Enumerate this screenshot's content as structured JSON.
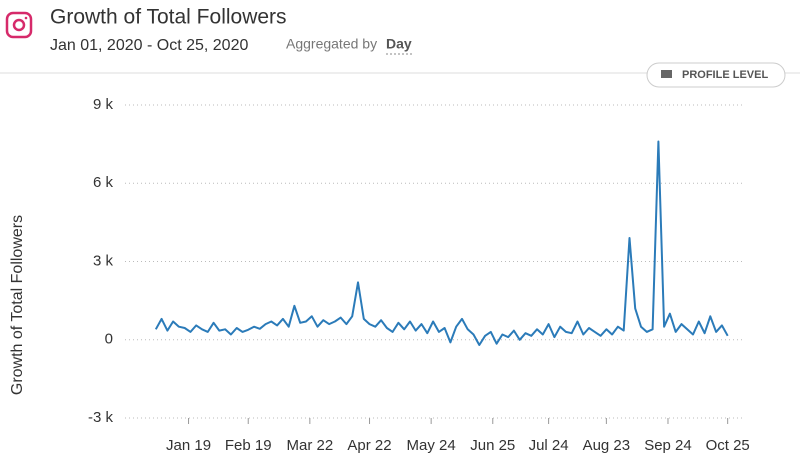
{
  "header": {
    "title": "Growth of Total Followers",
    "date_range": "Jan 01, 2020 - Oct 25, 2020",
    "aggregated_label": "Aggregated by",
    "aggregated_value": "Day",
    "button": "PROFILE LEVEL"
  },
  "chart_data": {
    "type": "line",
    "y_label": "Growth of Total Followers",
    "color": "#2b7bb9",
    "grid": true,
    "x": [
      2,
      5,
      8,
      11,
      14,
      17,
      20,
      23,
      26,
      29,
      32,
      35,
      38,
      41,
      44,
      47,
      50,
      53,
      56,
      59,
      62,
      65,
      68,
      71,
      74,
      77,
      80,
      83,
      86,
      89,
      92,
      95,
      98,
      101,
      104,
      107,
      110,
      113,
      116,
      119,
      122,
      125,
      128,
      131,
      134,
      137,
      140,
      143,
      146,
      149,
      152,
      155,
      158,
      161,
      164,
      167,
      170,
      173,
      176,
      179,
      182,
      185,
      188,
      191,
      194,
      197,
      200,
      203,
      206,
      209,
      212,
      215,
      218,
      221,
      224,
      227,
      230,
      233,
      236,
      239,
      242,
      245,
      248,
      251,
      254,
      257,
      260,
      263,
      266,
      269,
      272,
      275,
      278,
      281,
      284,
      287,
      290,
      293,
      296,
      299
    ],
    "values": [
      400,
      800,
      350,
      700,
      500,
      450,
      300,
      550,
      400,
      300,
      650,
      350,
      400,
      200,
      450,
      300,
      380,
      500,
      420,
      600,
      700,
      550,
      800,
      500,
      1300,
      650,
      700,
      900,
      500,
      750,
      600,
      700,
      850,
      600,
      900,
      2200,
      800,
      600,
      500,
      750,
      450,
      300,
      650,
      400,
      700,
      350,
      600,
      250,
      700,
      300,
      450,
      -100,
      500,
      800,
      400,
      200,
      -200,
      150,
      300,
      -150,
      200,
      100,
      350,
      0,
      250,
      150,
      400,
      200,
      600,
      100,
      500,
      300,
      250,
      700,
      200,
      450,
      300,
      150,
      400,
      200,
      500,
      350,
      3900,
      1200,
      500,
      300,
      400,
      7600,
      500,
      1000,
      300,
      600,
      400,
      200,
      700,
      250,
      900,
      300,
      550,
      150
    ],
    "xlim": [
      -14,
      308
    ],
    "xticks": [
      {
        "value": 19,
        "label": "Jan 19"
      },
      {
        "value": 50,
        "label": "Feb 19"
      },
      {
        "value": 82,
        "label": "Mar 22"
      },
      {
        "value": 113,
        "label": "Apr 22"
      },
      {
        "value": 145,
        "label": "May 24"
      },
      {
        "value": 177,
        "label": "Jun 25"
      },
      {
        "value": 206,
        "label": "Jul 24"
      },
      {
        "value": 236,
        "label": "Aug 23"
      },
      {
        "value": 268,
        "label": "Sep 24"
      },
      {
        "value": 299,
        "label": "Oct 25"
      }
    ],
    "ylim": [
      -3000,
      9000
    ],
    "yticks": [
      {
        "value": -3000,
        "label": "-3 k"
      },
      0,
      {
        "value": 3000,
        "label": "3 k"
      },
      {
        "value": 6000,
        "label": "6 k"
      },
      {
        "value": 9000,
        "label": "9 k"
      }
    ]
  }
}
